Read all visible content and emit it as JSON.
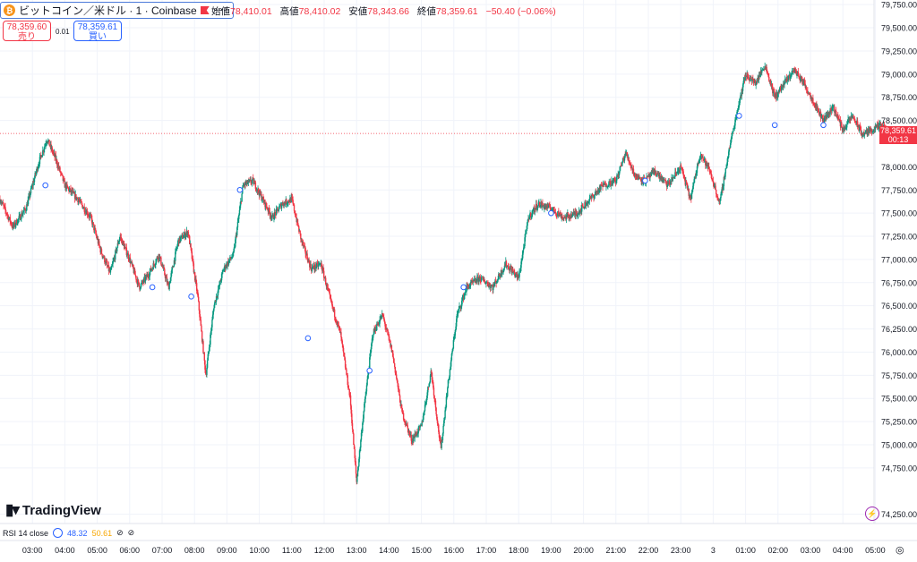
{
  "header": {
    "coin_glyph": "₿",
    "title": "ビットコイン／米ドル · 1 · Coinbase",
    "more_glyph": "∘∘∘",
    "ohlc": {
      "open_label": "始値",
      "open": "78,410.01",
      "high_label": "高値",
      "high": "78,410.02",
      "low_label": "安値",
      "low": "78,343.66",
      "close_label": "終値",
      "close": "78,359.61",
      "change": "−50.40 (−0.06%)"
    },
    "sell": {
      "price": "78,359.60",
      "label": "売り"
    },
    "buy": {
      "price": "78,359.61",
      "label": "買い"
    },
    "spread": "0.01"
  },
  "current_price": {
    "price": "78,359.61",
    "countdown": "00:13"
  },
  "logo": {
    "mark": "▮▾",
    "text": "TradingView"
  },
  "indicator": {
    "label": "RSI 14 close",
    "value1": "48.32",
    "value2": "50.61",
    "eye_glyph": "⊘",
    "remove_glyph": "⊘"
  },
  "lightning_glyph": "⚡",
  "settings_glyph": "◎",
  "colors": {
    "up": "#089981",
    "down": "#f23645",
    "grid": "#f0f3fa",
    "accent": "#2962ff",
    "rsi2": "#f7a600"
  },
  "chart_data": {
    "type": "candlestick",
    "symbol": "ビットコイン／米ドル · 1 · Coinbase",
    "x_ticks": [
      "03:00",
      "04:00",
      "05:00",
      "06:00",
      "07:00",
      "08:00",
      "09:00",
      "10:00",
      "11:00",
      "12:00",
      "13:00",
      "14:00",
      "15:00",
      "16:00",
      "17:00",
      "18:00",
      "19:00",
      "20:00",
      "21:00",
      "22:00",
      "23:00",
      "3",
      "01:00",
      "02:00",
      "03:00",
      "04:00",
      "05:00"
    ],
    "y_ticks": [
      "79,750.00",
      "79,500.00",
      "79,250.00",
      "79,000.00",
      "78,750.00",
      "78,500.00",
      "78,000.00",
      "77,750.00",
      "77,500.00",
      "77,250.00",
      "77,000.00",
      "76,750.00",
      "76,500.00",
      "76,250.00",
      "76,000.00",
      "75,750.00",
      "75,500.00",
      "75,250.00",
      "75,000.00",
      "74,750.00",
      "74,250.00"
    ],
    "ylim": [
      74150,
      79800
    ],
    "x_hour_range": [
      2.0,
      29.4
    ],
    "close_path": [
      [
        2.0,
        77650
      ],
      [
        2.4,
        77350
      ],
      [
        2.8,
        77550
      ],
      [
        3.2,
        78050
      ],
      [
        3.45,
        78300
      ],
      [
        3.7,
        78100
      ],
      [
        4.0,
        77800
      ],
      [
        4.4,
        77650
      ],
      [
        4.8,
        77450
      ],
      [
        5.1,
        77100
      ],
      [
        5.4,
        76850
      ],
      [
        5.7,
        77250
      ],
      [
        6.0,
        77000
      ],
      [
        6.3,
        76700
      ],
      [
        6.6,
        76850
      ],
      [
        6.9,
        77050
      ],
      [
        7.2,
        76700
      ],
      [
        7.5,
        77200
      ],
      [
        7.8,
        77300
      ],
      [
        8.1,
        76600
      ],
      [
        8.35,
        75750
      ],
      [
        8.6,
        76500
      ],
      [
        8.9,
        76900
      ],
      [
        9.2,
        77050
      ],
      [
        9.5,
        77800
      ],
      [
        9.8,
        77850
      ],
      [
        10.1,
        77650
      ],
      [
        10.4,
        77450
      ],
      [
        10.7,
        77600
      ],
      [
        11.0,
        77650
      ],
      [
        11.3,
        77200
      ],
      [
        11.6,
        76900
      ],
      [
        11.9,
        76950
      ],
      [
        12.2,
        76550
      ],
      [
        12.5,
        76200
      ],
      [
        12.8,
        75500
      ],
      [
        13.0,
        74600
      ],
      [
        13.2,
        75300
      ],
      [
        13.5,
        76200
      ],
      [
        13.8,
        76400
      ],
      [
        14.1,
        76000
      ],
      [
        14.4,
        75350
      ],
      [
        14.7,
        75050
      ],
      [
        15.0,
        75200
      ],
      [
        15.3,
        75800
      ],
      [
        15.6,
        74950
      ],
      [
        15.8,
        75600
      ],
      [
        16.1,
        76400
      ],
      [
        16.4,
        76700
      ],
      [
        16.8,
        76800
      ],
      [
        17.2,
        76700
      ],
      [
        17.6,
        76950
      ],
      [
        18.0,
        76800
      ],
      [
        18.3,
        77450
      ],
      [
        18.6,
        77600
      ],
      [
        19.0,
        77550
      ],
      [
        19.4,
        77450
      ],
      [
        19.8,
        77500
      ],
      [
        20.2,
        77650
      ],
      [
        20.6,
        77800
      ],
      [
        21.0,
        77850
      ],
      [
        21.3,
        78150
      ],
      [
        21.6,
        77900
      ],
      [
        21.9,
        77850
      ],
      [
        22.2,
        77950
      ],
      [
        22.6,
        77800
      ],
      [
        23.0,
        78000
      ],
      [
        23.3,
        77650
      ],
      [
        23.6,
        78150
      ],
      [
        23.9,
        77950
      ],
      [
        24.2,
        77600
      ],
      [
        24.5,
        78200
      ],
      [
        24.8,
        78700
      ],
      [
        25.0,
        79000
      ],
      [
        25.3,
        78900
      ],
      [
        25.6,
        79100
      ],
      [
        25.9,
        78750
      ],
      [
        26.2,
        78900
      ],
      [
        26.5,
        79050
      ],
      [
        26.8,
        78900
      ],
      [
        27.1,
        78700
      ],
      [
        27.4,
        78500
      ],
      [
        27.7,
        78650
      ],
      [
        28.0,
        78400
      ],
      [
        28.3,
        78550
      ],
      [
        28.6,
        78350
      ],
      [
        28.9,
        78400
      ],
      [
        29.2,
        78450
      ],
      [
        29.4,
        78360
      ]
    ],
    "markers": [
      [
        3.4,
        77800
      ],
      [
        6.7,
        76700
      ],
      [
        7.9,
        76600
      ],
      [
        9.4,
        77750
      ],
      [
        11.5,
        76150
      ],
      [
        13.4,
        75800
      ],
      [
        16.3,
        76700
      ],
      [
        19.0,
        77500
      ],
      [
        21.9,
        77850
      ],
      [
        24.8,
        78550
      ],
      [
        25.9,
        78450
      ],
      [
        27.4,
        78450
      ]
    ],
    "last_price": 78359.61,
    "grid": true
  }
}
